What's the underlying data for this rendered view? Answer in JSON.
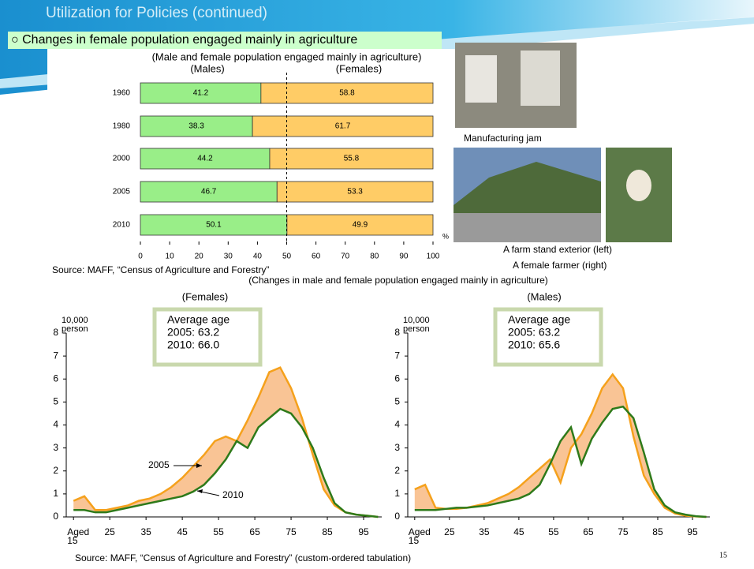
{
  "slide": {
    "title": "Utilization for Policies (continued)",
    "subtitle": "○ Changes in female population engaged mainly in agriculture",
    "photo_captions": [
      "Manufacturing jam",
      "A farm stand exterior (left)",
      "A female farmer (right)"
    ],
    "section_title": "(Changes in male and female population engaged mainly in agriculture)",
    "source": "Source: MAFF, “Census of Agriculture and Forestry” (custom-ordered tabulation)",
    "page_number": "15"
  },
  "chart_data": [
    {
      "type": "stacked-hbar",
      "title": "(Male and female population engaged mainly in agriculture)",
      "categories": [
        "1960",
        "1980",
        "2000",
        "2005",
        "2010"
      ],
      "series": [
        {
          "name": "(Males)",
          "color": "#99ee88",
          "values": [
            41.2,
            38.3,
            44.2,
            46.7,
            50.1
          ]
        },
        {
          "name": "(Females)",
          "color": "#ffcc66",
          "values": [
            58.8,
            61.7,
            55.8,
            53.3,
            49.9
          ]
        }
      ],
      "xlim": [
        0,
        100
      ],
      "xticks": [
        0,
        10,
        20,
        30,
        40,
        50,
        60,
        70,
        80,
        90,
        100
      ],
      "x_unit": "%",
      "reference_line": 50,
      "source": "Source: MAFF, “Census of Agriculture and Forestry”"
    },
    {
      "type": "line-gap",
      "title": "(Females)",
      "y_label": "10,000 person",
      "annotation": [
        "Average age",
        "2005: 63.2",
        "2010: 66.0"
      ],
      "x": [
        15,
        18,
        21,
        24,
        27,
        30,
        33,
        36,
        39,
        42,
        45,
        48,
        51,
        54,
        57,
        60,
        63,
        66,
        69,
        72,
        75,
        78,
        81,
        84,
        87,
        90,
        93,
        96,
        99
      ],
      "series": [
        {
          "name": "2005",
          "color": "#f5a11c",
          "values": [
            0.7,
            0.9,
            0.3,
            0.3,
            0.4,
            0.5,
            0.7,
            0.8,
            1.0,
            1.3,
            1.7,
            2.2,
            2.7,
            3.3,
            3.5,
            3.3,
            4.2,
            5.2,
            6.3,
            6.5,
            5.6,
            4.3,
            2.7,
            1.2,
            0.5,
            0.2,
            0.1,
            0.05,
            0
          ]
        },
        {
          "name": "2010",
          "color": "#2e7a1a",
          "values": [
            0.3,
            0.3,
            0.2,
            0.2,
            0.3,
            0.4,
            0.5,
            0.6,
            0.7,
            0.8,
            0.9,
            1.1,
            1.4,
            1.9,
            2.5,
            3.3,
            3.0,
            3.9,
            4.3,
            4.7,
            4.5,
            3.9,
            3.0,
            1.7,
            0.6,
            0.2,
            0.1,
            0.05,
            0
          ]
        }
      ],
      "fill_color": "#f9c495",
      "xlim": [
        13,
        100
      ],
      "xticks": [
        {
          "value": 15,
          "label": "Aged 15"
        },
        25,
        35,
        45,
        55,
        65,
        75,
        85,
        95
      ],
      "ylim": [
        0,
        8
      ],
      "yticks": [
        0,
        1,
        2,
        3,
        4,
        5,
        6,
        7,
        8
      ]
    },
    {
      "type": "line-gap",
      "title": "(Males)",
      "y_label": "10,000 person",
      "annotation": [
        "Average age",
        "2005: 63.2",
        "2010: 65.6"
      ],
      "x": [
        15,
        18,
        21,
        24,
        27,
        30,
        33,
        36,
        39,
        42,
        45,
        48,
        51,
        54,
        57,
        60,
        63,
        66,
        69,
        72,
        75,
        78,
        81,
        84,
        87,
        90,
        93,
        96,
        99
      ],
      "series": [
        {
          "color": "#f5a11c",
          "values": [
            1.2,
            1.4,
            0.4,
            0.35,
            0.35,
            0.4,
            0.5,
            0.6,
            0.8,
            1.0,
            1.3,
            1.7,
            2.1,
            2.5,
            1.5,
            3.0,
            3.6,
            4.5,
            5.6,
            6.2,
            5.6,
            3.5,
            1.8,
            1.0,
            0.4,
            0.15,
            0.05,
            0.02,
            0
          ]
        },
        {
          "color": "#2e7a1a",
          "values": [
            0.3,
            0.3,
            0.3,
            0.35,
            0.4,
            0.4,
            0.45,
            0.5,
            0.6,
            0.7,
            0.8,
            1.0,
            1.4,
            2.3,
            3.3,
            3.9,
            2.3,
            3.4,
            4.1,
            4.7,
            4.8,
            4.3,
            2.8,
            1.2,
            0.5,
            0.2,
            0.1,
            0.03,
            0
          ]
        }
      ],
      "fill_color": "#f9c495",
      "xlim": [
        13,
        100
      ],
      "xticks": [
        {
          "value": 15,
          "label": "Aged 15"
        },
        25,
        35,
        45,
        55,
        65,
        75,
        85,
        95
      ],
      "ylim": [
        0,
        8
      ],
      "yticks": [
        0,
        1,
        2,
        3,
        4,
        5,
        6,
        7,
        8
      ]
    }
  ]
}
